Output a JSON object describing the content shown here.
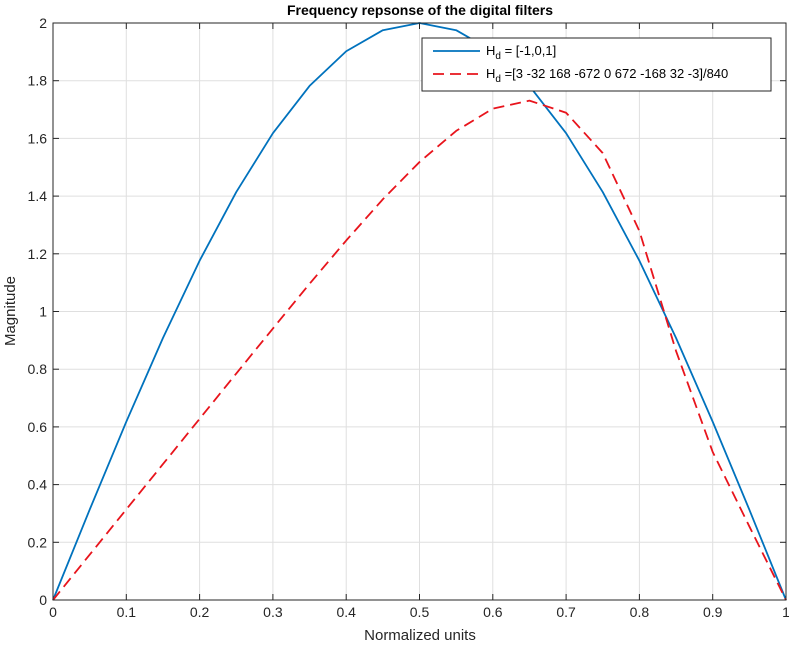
{
  "chart_data": {
    "type": "line",
    "title": "Frequency repsonse of the digital filters",
    "xlabel": "Normalized units",
    "ylabel": "Magnitude",
    "xlim": [
      0,
      1
    ],
    "ylim": [
      0,
      2
    ],
    "xticks": [
      0,
      0.1,
      0.2,
      0.3,
      0.4,
      0.5,
      0.6,
      0.7,
      0.8,
      0.9,
      1
    ],
    "yticks": [
      0,
      0.2,
      0.4,
      0.6,
      0.8,
      1,
      1.2,
      1.4,
      1.6,
      1.8,
      2
    ],
    "xtick_labels": [
      "0",
      "0.1",
      "0.2",
      "0.3",
      "0.4",
      "0.5",
      "0.6",
      "0.7",
      "0.8",
      "0.9",
      "1"
    ],
    "ytick_labels": [
      "0",
      "0.2",
      "0.4",
      "0.6",
      "0.8",
      "1",
      "1.2",
      "1.4",
      "1.6",
      "1.8",
      "2"
    ],
    "grid": true,
    "legend_position": "top-right",
    "series": [
      {
        "legend_main": "H",
        "legend_sub": "d",
        "legend_rest": " = [-1,0,1]",
        "color": "#0072BD",
        "style": "solid",
        "x": [
          0,
          0.05,
          0.1,
          0.15,
          0.2,
          0.25,
          0.3,
          0.35,
          0.4,
          0.45,
          0.5,
          0.55,
          0.6,
          0.65,
          0.7,
          0.75,
          0.8,
          0.85,
          0.9,
          0.95,
          1
        ],
        "y": [
          0,
          0.313,
          0.618,
          0.908,
          1.176,
          1.414,
          1.618,
          1.782,
          1.902,
          1.975,
          2.0,
          1.975,
          1.902,
          1.782,
          1.618,
          1.414,
          1.176,
          0.908,
          0.618,
          0.313,
          0
        ]
      },
      {
        "legend_main": "H",
        "legend_sub": "d",
        "legend_rest": " =[3 -32 168 -672 0 672 -168 32 -3]/840",
        "color": "#E8141C",
        "style": "dashed",
        "x": [
          0,
          0.05,
          0.1,
          0.15,
          0.2,
          0.25,
          0.3,
          0.35,
          0.4,
          0.45,
          0.5,
          0.55,
          0.6,
          0.65,
          0.7,
          0.75,
          0.8,
          0.85,
          0.9,
          0.95,
          1
        ],
        "y": [
          0,
          0.157,
          0.314,
          0.471,
          0.628,
          0.785,
          0.941,
          1.096,
          1.246,
          1.389,
          1.518,
          1.626,
          1.703,
          1.731,
          1.689,
          1.549,
          1.279,
          0.863,
          0.513,
          0.255,
          0
        ]
      }
    ]
  }
}
